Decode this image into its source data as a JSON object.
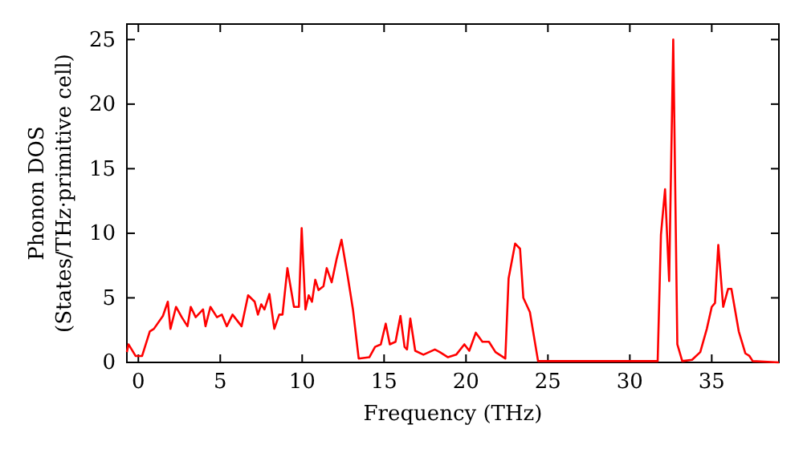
{
  "chart_data": {
    "type": "line",
    "xlabel": "Frequency (THz)",
    "ylabel": "Phonon DOS\n(States/THz·primitive cell)",
    "xlim": [
      -0.7,
      39.1
    ],
    "ylim": [
      0,
      26.2
    ],
    "xticks": [
      0,
      5,
      10,
      15,
      20,
      25,
      30,
      35
    ],
    "yticks": [
      0,
      5,
      10,
      15,
      20,
      25
    ],
    "grid": false,
    "marker": "none",
    "line_style": "solid",
    "series": [
      {
        "color": "#ff0000",
        "x": [
          -0.7,
          -0.6,
          -0.17,
          0.23,
          0.7,
          0.95,
          1.5,
          1.8,
          1.96,
          2.3,
          2.65,
          3.0,
          3.2,
          3.5,
          3.95,
          4.1,
          4.4,
          4.8,
          5.1,
          5.4,
          5.75,
          6.3,
          6.7,
          7.1,
          7.3,
          7.5,
          7.7,
          8.0,
          8.3,
          8.6,
          8.8,
          9.1,
          9.5,
          9.8,
          9.97,
          10.2,
          10.4,
          10.6,
          10.8,
          11.0,
          11.3,
          11.5,
          11.8,
          12.1,
          12.4,
          12.8,
          13.1,
          13.45,
          14.1,
          14.45,
          14.8,
          15.1,
          15.35,
          15.7,
          16.0,
          16.25,
          16.4,
          16.6,
          16.9,
          17.4,
          18.1,
          18.4,
          18.9,
          19.4,
          19.9,
          20.2,
          20.6,
          21.0,
          21.4,
          21.8,
          22.4,
          22.6,
          23.0,
          23.3,
          23.5,
          23.9,
          24.4,
          31.7,
          31.9,
          32.15,
          32.4,
          32.65,
          32.9,
          33.2,
          33.8,
          34.3,
          34.7,
          35.0,
          35.2,
          35.4,
          35.7,
          36.0,
          36.2,
          36.65,
          37.05,
          37.3,
          37.5,
          39.1
        ],
        "values": [
          0.8,
          1.4,
          0.5,
          0.5,
          2.4,
          2.6,
          3.6,
          4.7,
          2.6,
          4.3,
          3.5,
          2.8,
          4.3,
          3.5,
          4.1,
          2.8,
          4.3,
          3.5,
          3.7,
          2.8,
          3.7,
          2.8,
          5.2,
          4.7,
          3.7,
          4.5,
          4.1,
          5.3,
          2.6,
          3.7,
          3.7,
          7.3,
          4.3,
          4.3,
          10.4,
          4.1,
          5.2,
          4.7,
          6.4,
          5.6,
          5.9,
          7.3,
          6.2,
          8.0,
          9.5,
          6.5,
          4.1,
          0.3,
          0.4,
          1.2,
          1.4,
          3.0,
          1.4,
          1.6,
          3.6,
          1.2,
          1.0,
          3.4,
          0.9,
          0.6,
          1.0,
          0.8,
          0.4,
          0.6,
          1.4,
          0.9,
          2.3,
          1.6,
          1.6,
          0.8,
          0.3,
          6.5,
          9.2,
          8.8,
          5.0,
          3.9,
          0.1,
          0.1,
          9.9,
          13.4,
          6.3,
          25.0,
          1.4,
          0.1,
          0.2,
          0.8,
          2.6,
          4.3,
          4.6,
          9.1,
          4.3,
          5.7,
          5.7,
          2.4,
          0.7,
          0.5,
          0.1,
          0.0
        ]
      }
    ]
  }
}
